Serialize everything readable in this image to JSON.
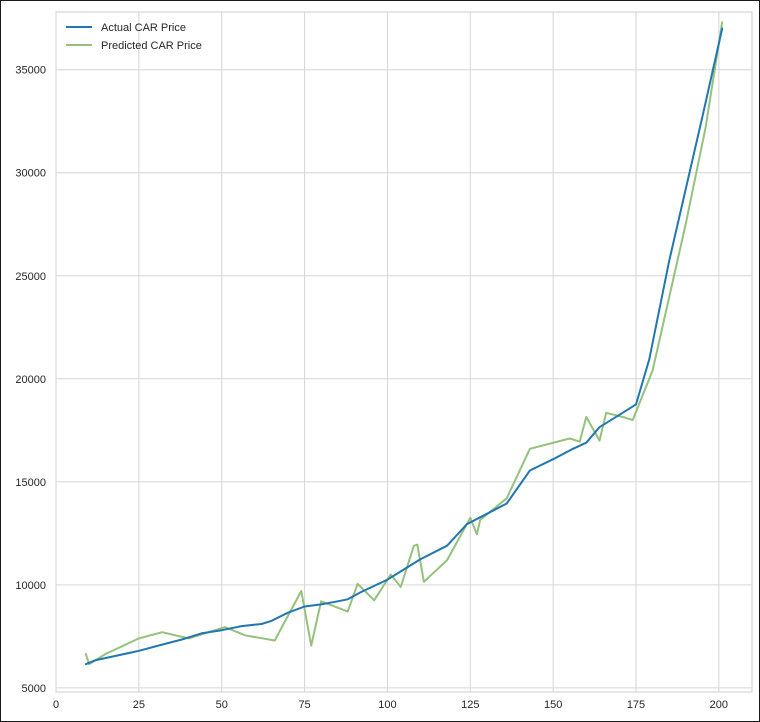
{
  "chart_data": {
    "type": "line",
    "title": "",
    "xlabel": "",
    "ylabel": "",
    "xlim": [
      0,
      210
    ],
    "ylim": [
      4800,
      37800
    ],
    "xticks": [
      0,
      25,
      50,
      75,
      100,
      125,
      150,
      175,
      200
    ],
    "yticks": [
      5000,
      10000,
      15000,
      20000,
      25000,
      30000,
      35000
    ],
    "grid": true,
    "legend_position": "top-left",
    "series": [
      {
        "name": "Actual CAR Price",
        "color": "#2177b0",
        "x": [
          9,
          12,
          18,
          25,
          32,
          38,
          44,
          50,
          56,
          62,
          65,
          70,
          75,
          80,
          85,
          88,
          92,
          96,
          100,
          105,
          110,
          118,
          124,
          130,
          136,
          143,
          150,
          156,
          160,
          164,
          170,
          175,
          179,
          185,
          195,
          201
        ],
        "y": [
          6150,
          6350,
          6550,
          6800,
          7100,
          7350,
          7650,
          7800,
          8000,
          8100,
          8250,
          8650,
          8950,
          9050,
          9200,
          9300,
          9650,
          9950,
          10250,
          10750,
          11250,
          11900,
          12950,
          13450,
          13950,
          15550,
          16100,
          16600,
          16900,
          17650,
          18250,
          18750,
          20950,
          25700,
          32700,
          37000
        ]
      },
      {
        "name": "Predicted CAR Price",
        "color": "#94c27c",
        "x": [
          9,
          10,
          15,
          25,
          32,
          40,
          45,
          51,
          57,
          66,
          74,
          77,
          80,
          88,
          91,
          96,
          101,
          104,
          108,
          109,
          111,
          118,
          125,
          127,
          128,
          136,
          143,
          155,
          158,
          160,
          164,
          166,
          172,
          174,
          180,
          190,
          196,
          201
        ],
        "y": [
          6650,
          6150,
          6650,
          7400,
          7700,
          7400,
          7650,
          7950,
          7550,
          7300,
          9700,
          7050,
          9200,
          8700,
          10050,
          9250,
          10500,
          9900,
          11900,
          11950,
          10150,
          11200,
          13250,
          12450,
          13150,
          14200,
          16600,
          17100,
          16950,
          18150,
          17000,
          18350,
          18100,
          18000,
          20400,
          27500,
          32200,
          37300
        ]
      }
    ]
  }
}
